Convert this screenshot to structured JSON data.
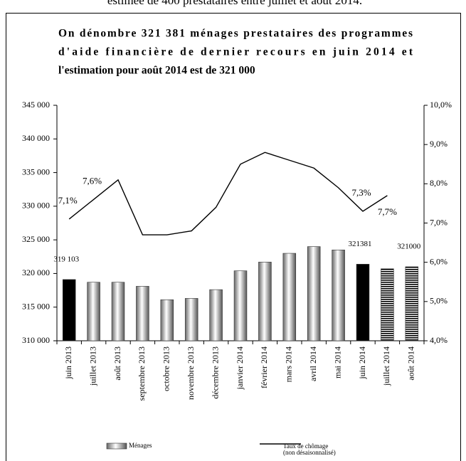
{
  "header": "estimée de 400 prestataires entre juillet et août 2014.",
  "chart_data": {
    "type": "bar-line",
    "title": [
      "On dénombre 321 381 ménages prestataires des programmes",
      "d'aide financière de dernier recours en juin 2014 et",
      "l'estimation pour août 2014 est de 321 000"
    ],
    "categories": [
      "juin 2013",
      "juillet 2013",
      "août 2013",
      "septembre 2013",
      "octobre 2013",
      "novembre 2013",
      "décembre 2013",
      "janvier 2014",
      "février 2014",
      "mars 2014",
      "avril 2014",
      "mai 2014",
      "juin 2014",
      "juillet 2014",
      "août 2014"
    ],
    "series": [
      {
        "name": "Ménages",
        "type": "bar",
        "color": "#b8b8b8",
        "styles": [
          "solid",
          "gradient",
          "gradient",
          "gradient",
          "gradient",
          "gradient",
          "gradient",
          "gradient",
          "gradient",
          "gradient",
          "gradient",
          "gradient",
          "solid",
          "striped",
          "striped"
        ],
        "solid_color": "#000000",
        "values": [
          319103,
          318700,
          318700,
          318100,
          316100,
          316300,
          317600,
          320400,
          321700,
          323000,
          324000,
          323500,
          321381,
          320700,
          321000
        ],
        "value_labels": [
          "319 103",
          null,
          null,
          null,
          null,
          null,
          null,
          null,
          null,
          null,
          null,
          null,
          "321381",
          null,
          "321000"
        ]
      },
      {
        "name": "Taux de chômage",
        "note": "(non désaisonnalisé)",
        "type": "line",
        "axis": "y2",
        "color": "#000000",
        "values": [
          7.1,
          7.6,
          8.1,
          6.7,
          6.7,
          6.8,
          7.4,
          8.5,
          8.8,
          8.6,
          8.4,
          7.9,
          7.3,
          7.7,
          null
        ],
        "value_labels": [
          "7,1%",
          "7,6%",
          null,
          null,
          null,
          null,
          null,
          null,
          null,
          null,
          null,
          null,
          "7,3%",
          "7,7%",
          null
        ]
      }
    ],
    "ylim": [
      310000,
      345000
    ],
    "yticks": [
      {
        "value": 310000,
        "label": "310 000"
      },
      {
        "value": 315000,
        "label": "315 000"
      },
      {
        "value": 320000,
        "label": "320 000"
      },
      {
        "value": 325000,
        "label": "325 000"
      },
      {
        "value": 330000,
        "label": "330 000"
      },
      {
        "value": 335000,
        "label": "335 000"
      },
      {
        "value": 340000,
        "label": "340 000"
      },
      {
        "value": 345000,
        "label": "345 000"
      }
    ],
    "y2lim": [
      4,
      10
    ],
    "y2ticks": [
      {
        "value": 4,
        "label": "4,0%"
      },
      {
        "value": 5,
        "label": "5,0%"
      },
      {
        "value": 6,
        "label": "6,0%"
      },
      {
        "value": 7,
        "label": "7,0%"
      },
      {
        "value": 8,
        "label": "8,0%"
      },
      {
        "value": 9,
        "label": "9,0%"
      },
      {
        "value": 10,
        "label": "10,0%"
      }
    ],
    "grid": false
  }
}
